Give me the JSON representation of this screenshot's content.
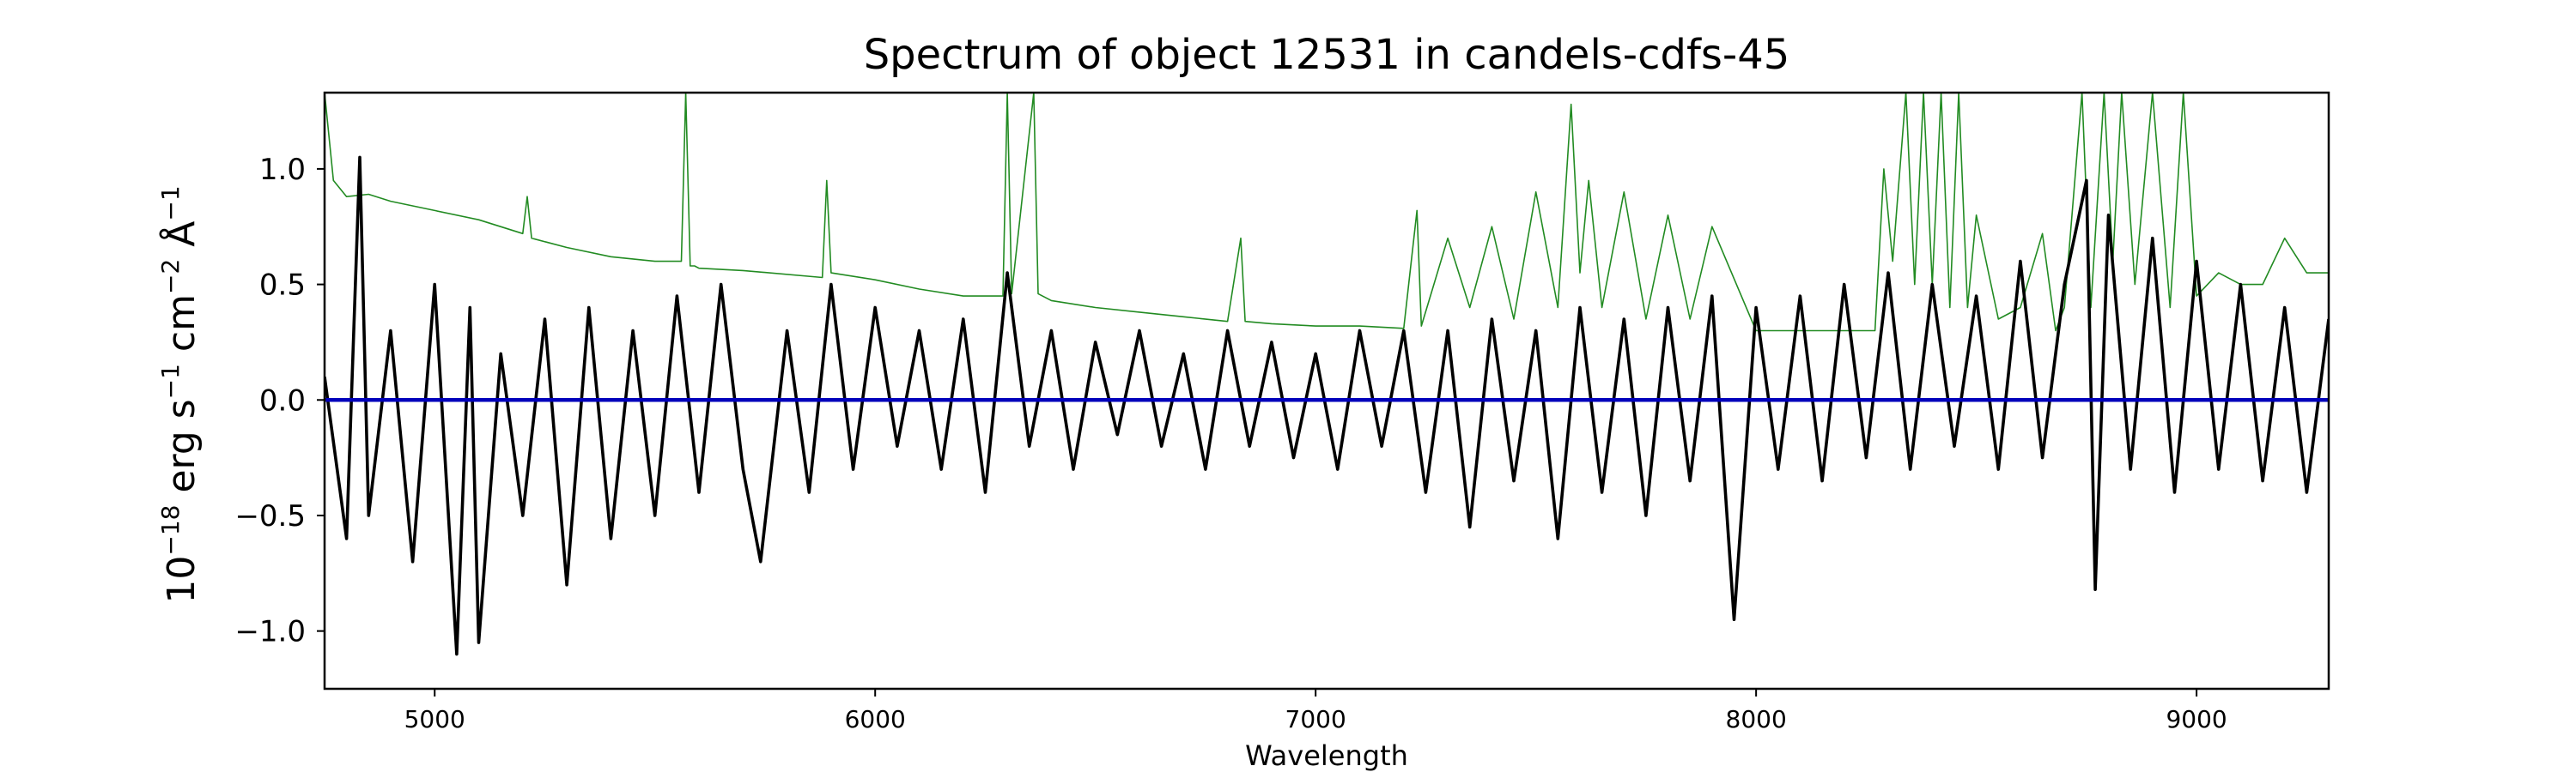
{
  "chart_data": {
    "type": "line",
    "title": "Spectrum of object 12531 in candels-cdfs-45",
    "xlabel": "Wavelength",
    "ylabel": {
      "base": "10",
      "base_exp": "−18",
      "unit1": " erg s",
      "unit1_exp": "−1",
      "unit2": " cm",
      "unit2_exp": "−2",
      "unit3": " Å",
      "unit3_exp": "−1"
    },
    "xlim": [
      4750,
      9300
    ],
    "ylim": [
      -1.25,
      1.33
    ],
    "xticks": [
      5000,
      6000,
      7000,
      8000,
      9000
    ],
    "xtick_labels": [
      "5000",
      "6000",
      "7000",
      "8000",
      "9000"
    ],
    "yticks": [
      -1.0,
      -0.5,
      0.0,
      0.5,
      1.0
    ],
    "ytick_labels": [
      "−1.0",
      "−0.5",
      "0.0",
      "0.5",
      "1.0"
    ],
    "grid": false,
    "colors": {
      "flux": "#000000",
      "error": "#228b22",
      "zero": "#0000bb"
    },
    "series": [
      {
        "role": "flux",
        "x": [
          4750,
          4800,
          4830,
          4850,
          4900,
          4950,
          5000,
          5050,
          5080,
          5100,
          5150,
          5200,
          5250,
          5300,
          5350,
          5400,
          5450,
          5500,
          5550,
          5600,
          5650,
          5700,
          5740,
          5800,
          5850,
          5900,
          5950,
          6000,
          6050,
          6100,
          6150,
          6200,
          6250,
          6300,
          6350,
          6400,
          6450,
          6500,
          6550,
          6600,
          6650,
          6700,
          6750,
          6800,
          6850,
          6900,
          6950,
          7000,
          7050,
          7100,
          7150,
          7200,
          7250,
          7300,
          7350,
          7400,
          7450,
          7500,
          7550,
          7600,
          7650,
          7700,
          7750,
          7800,
          7850,
          7900,
          7950,
          8000,
          8050,
          8100,
          8150,
          8200,
          8250,
          8300,
          8350,
          8400,
          8450,
          8500,
          8550,
          8600,
          8650,
          8700,
          8750,
          8770,
          8800,
          8850,
          8900,
          8950,
          9000,
          9050,
          9100,
          9150,
          9200,
          9250,
          9300
        ],
        "y": [
          0.1,
          -0.6,
          1.05,
          -0.5,
          0.3,
          -0.7,
          0.5,
          -1.1,
          0.4,
          -1.05,
          0.2,
          -0.5,
          0.35,
          -0.8,
          0.4,
          -0.6,
          0.3,
          -0.5,
          0.45,
          -0.4,
          0.5,
          -0.3,
          -0.7,
          0.3,
          -0.4,
          0.5,
          -0.3,
          0.4,
          -0.2,
          0.3,
          -0.3,
          0.35,
          -0.4,
          0.55,
          -0.2,
          0.3,
          -0.3,
          0.25,
          -0.15,
          0.3,
          -0.2,
          0.2,
          -0.3,
          0.3,
          -0.2,
          0.25,
          -0.25,
          0.2,
          -0.3,
          0.3,
          -0.2,
          0.3,
          -0.4,
          0.3,
          -0.55,
          0.35,
          -0.35,
          0.3,
          -0.6,
          0.4,
          -0.4,
          0.35,
          -0.5,
          0.4,
          -0.35,
          0.45,
          -0.95,
          0.4,
          -0.3,
          0.45,
          -0.35,
          0.5,
          -0.25,
          0.55,
          -0.3,
          0.5,
          -0.2,
          0.45,
          -0.3,
          0.6,
          -0.25,
          0.5,
          0.95,
          -0.82,
          0.8,
          -0.3,
          0.7,
          -0.4,
          0.6,
          -0.3,
          0.5,
          -0.35,
          0.4,
          -0.4,
          0.35
        ]
      },
      {
        "role": "error",
        "x": [
          4750,
          4770,
          4800,
          4850,
          4900,
          5000,
          5100,
          5200,
          5210,
          5220,
          5300,
          5400,
          5500,
          5560,
          5570,
          5580,
          5590,
          5600,
          5700,
          5880,
          5890,
          5900,
          6000,
          6100,
          6200,
          6290,
          6300,
          6310,
          6360,
          6370,
          6400,
          6500,
          6600,
          6700,
          6800,
          6830,
          6840,
          6900,
          7000,
          7100,
          7200,
          7230,
          7240,
          7300,
          7350,
          7400,
          7450,
          7500,
          7550,
          7580,
          7600,
          7620,
          7650,
          7700,
          7750,
          7800,
          7850,
          7900,
          8000,
          8100,
          8200,
          8270,
          8290,
          8310,
          8340,
          8360,
          8380,
          8400,
          8420,
          8440,
          8460,
          8480,
          8500,
          8550,
          8600,
          8650,
          8680,
          8700,
          8740,
          8760,
          8790,
          8810,
          8830,
          8860,
          8900,
          8940,
          8970,
          9000,
          9050,
          9100,
          9150,
          9200,
          9250,
          9300
        ],
        "y": [
          1.33,
          0.95,
          0.88,
          0.89,
          0.86,
          0.82,
          0.78,
          0.72,
          0.88,
          0.7,
          0.66,
          0.62,
          0.6,
          0.6,
          1.33,
          0.58,
          0.58,
          0.57,
          0.56,
          0.53,
          0.95,
          0.55,
          0.52,
          0.48,
          0.45,
          0.45,
          1.33,
          0.46,
          1.33,
          0.46,
          0.43,
          0.4,
          0.38,
          0.36,
          0.34,
          0.7,
          0.34,
          0.33,
          0.32,
          0.32,
          0.31,
          0.82,
          0.32,
          0.7,
          0.4,
          0.75,
          0.35,
          0.9,
          0.4,
          1.28,
          0.55,
          0.95,
          0.4,
          0.9,
          0.35,
          0.8,
          0.35,
          0.75,
          0.3,
          0.3,
          0.3,
          0.3,
          1.0,
          0.6,
          1.33,
          0.5,
          1.33,
          0.5,
          1.33,
          0.4,
          1.33,
          0.4,
          0.8,
          0.35,
          0.4,
          0.72,
          0.3,
          0.4,
          1.33,
          0.4,
          1.33,
          0.6,
          1.33,
          0.5,
          1.33,
          0.4,
          1.33,
          0.45,
          0.55,
          0.5,
          0.5,
          0.7,
          0.55,
          0.55
        ]
      },
      {
        "role": "zero",
        "x": [
          4750,
          9300
        ],
        "y": [
          0.0,
          0.0
        ]
      }
    ]
  }
}
